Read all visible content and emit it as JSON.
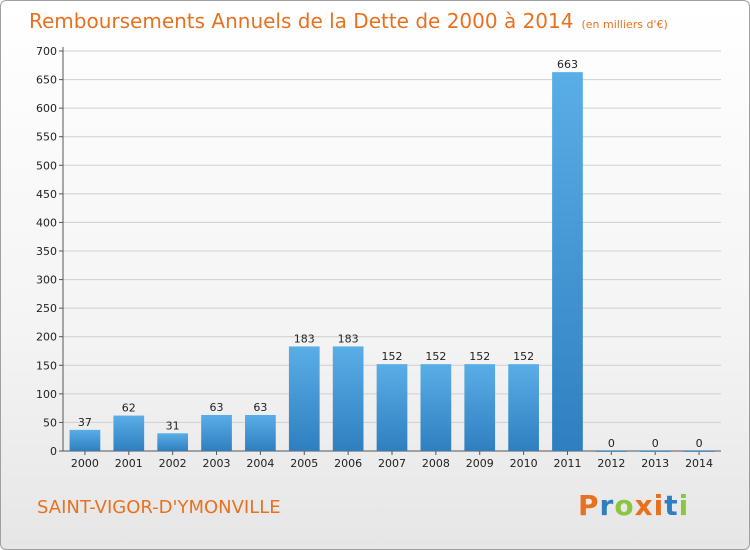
{
  "header": {
    "title": "Remboursements Annuels de la Dette de 2000 à 2014",
    "unit": "(en milliers d'€)"
  },
  "footer": {
    "commune": "SAINT-VIGOR-D'YMONVILLE",
    "logo": "Proxiti"
  },
  "colors": {
    "title": "#e8711f",
    "bar_light": "#5aaee6",
    "bar_dark": "#2f7fc0",
    "logo_letters": [
      "#e8711f",
      "#2f7fc0",
      "#8cc63f",
      "#e8711f",
      "#e8711f",
      "#2f7fc0",
      "#8cc63f"
    ]
  },
  "chart_data": {
    "type": "bar",
    "title": "Remboursements Annuels de la Dette de 2000 à 2014",
    "subtitle": "(en milliers d'€)",
    "categories": [
      "2000",
      "2001",
      "2002",
      "2003",
      "2004",
      "2005",
      "2006",
      "2007",
      "2008",
      "2009",
      "2010",
      "2011",
      "2012",
      "2013",
      "2014"
    ],
    "values": [
      37,
      62,
      31,
      63,
      63,
      183,
      183,
      152,
      152,
      152,
      152,
      663,
      0,
      0,
      0
    ],
    "ylim": [
      0,
      700
    ],
    "yticks": [
      0,
      50,
      100,
      150,
      200,
      250,
      300,
      350,
      400,
      450,
      500,
      550,
      600,
      650,
      700
    ],
    "grid": true
  }
}
